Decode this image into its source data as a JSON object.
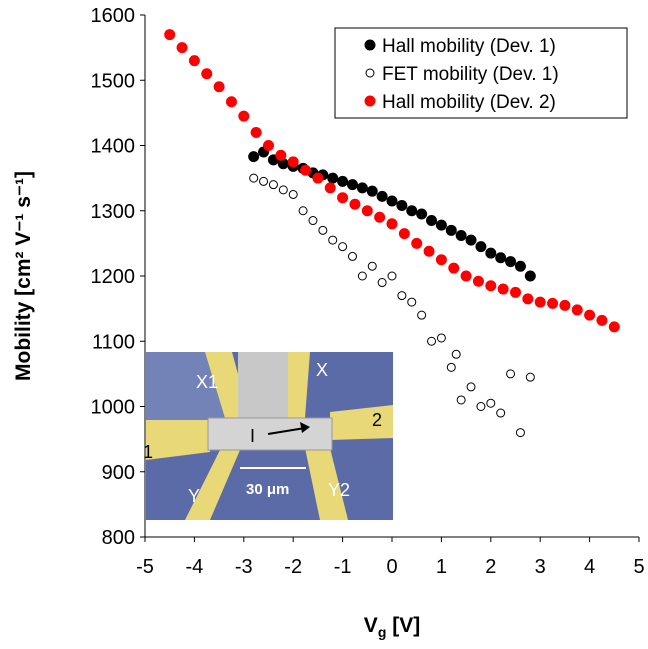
{
  "chart_data": {
    "type": "scatter",
    "xlabel": {
      "main": "V",
      "sub": "g",
      "rest": " [V]"
    },
    "ylabel": "Mobility [cm² V⁻¹ s⁻¹]",
    "xlim": [
      -5,
      5
    ],
    "ylim": [
      800,
      1600
    ],
    "xticks": [
      -5,
      -4,
      -3,
      -2,
      -1,
      0,
      1,
      2,
      3,
      4,
      5
    ],
    "yticks": [
      800,
      900,
      1000,
      1100,
      1200,
      1300,
      1400,
      1500,
      1600
    ],
    "legend": "upper right",
    "series": [
      {
        "name": "Hall mobility (Dev. 1)",
        "color": "#000000",
        "marker": "filled",
        "x": [
          -2.8,
          -2.6,
          -2.4,
          -2.2,
          -2,
          -1.8,
          -1.6,
          -1.4,
          -1.2,
          -1,
          -0.8,
          -0.6,
          -0.4,
          -0.2,
          0,
          0.2,
          0.4,
          0.6,
          0.8,
          1,
          1.2,
          1.4,
          1.6,
          1.8,
          2,
          2.2,
          2.4,
          2.6,
          2.8
        ],
        "values": [
          1383,
          1390,
          1378,
          1372,
          1368,
          1365,
          1358,
          1355,
          1350,
          1345,
          1340,
          1335,
          1330,
          1322,
          1315,
          1308,
          1300,
          1295,
          1285,
          1278,
          1270,
          1262,
          1255,
          1245,
          1235,
          1228,
          1222,
          1215,
          1200
        ]
      },
      {
        "name": "FET mobility (Dev. 1)",
        "color": "#000000",
        "marker": "open",
        "x": [
          -2.8,
          -2.6,
          -2.4,
          -2.2,
          -2,
          -1.8,
          -1.6,
          -1.4,
          -1.2,
          -1,
          -0.8,
          -0.6,
          -0.4,
          -0.2,
          0,
          0.2,
          0.4,
          0.6,
          0.8,
          1,
          1.2,
          1.3,
          1.4,
          1.6,
          1.8,
          2,
          2.2,
          2.4,
          2.6,
          2.8
        ],
        "values": [
          1350,
          1345,
          1340,
          1332,
          1325,
          1300,
          1285,
          1270,
          1255,
          1245,
          1230,
          1200,
          1215,
          1190,
          1200,
          1170,
          1160,
          1140,
          1100,
          1105,
          1060,
          1080,
          1010,
          1030,
          1000,
          1005,
          990,
          1050,
          960,
          1045
        ]
      },
      {
        "name": "Hall mobility (Dev. 2)",
        "color": "#ff0000",
        "marker": "filled",
        "x": [
          -4.5,
          -4.25,
          -4,
          -3.75,
          -3.5,
          -3.25,
          -3,
          -2.75,
          -2.5,
          -2.25,
          -2,
          -1.75,
          -1.5,
          -1.25,
          -1,
          -0.75,
          -0.5,
          -0.25,
          0,
          0.25,
          0.5,
          0.75,
          1,
          1.25,
          1.5,
          1.75,
          2,
          2.25,
          2.5,
          2.75,
          3,
          3.25,
          3.5,
          3.75,
          4,
          4.25,
          4.5
        ],
        "values": [
          1570,
          1550,
          1530,
          1510,
          1490,
          1467,
          1445,
          1420,
          1400,
          1385,
          1375,
          1362,
          1350,
          1335,
          1320,
          1310,
          1300,
          1290,
          1280,
          1265,
          1250,
          1238,
          1225,
          1212,
          1200,
          1192,
          1185,
          1180,
          1175,
          1165,
          1160,
          1158,
          1155,
          1148,
          1140,
          1132,
          1122
        ]
      }
    ],
    "inset": {
      "labels": [
        "X1",
        "X",
        "1",
        "2",
        "Y",
        "Y2",
        "I",
        "30 μm"
      ]
    }
  }
}
